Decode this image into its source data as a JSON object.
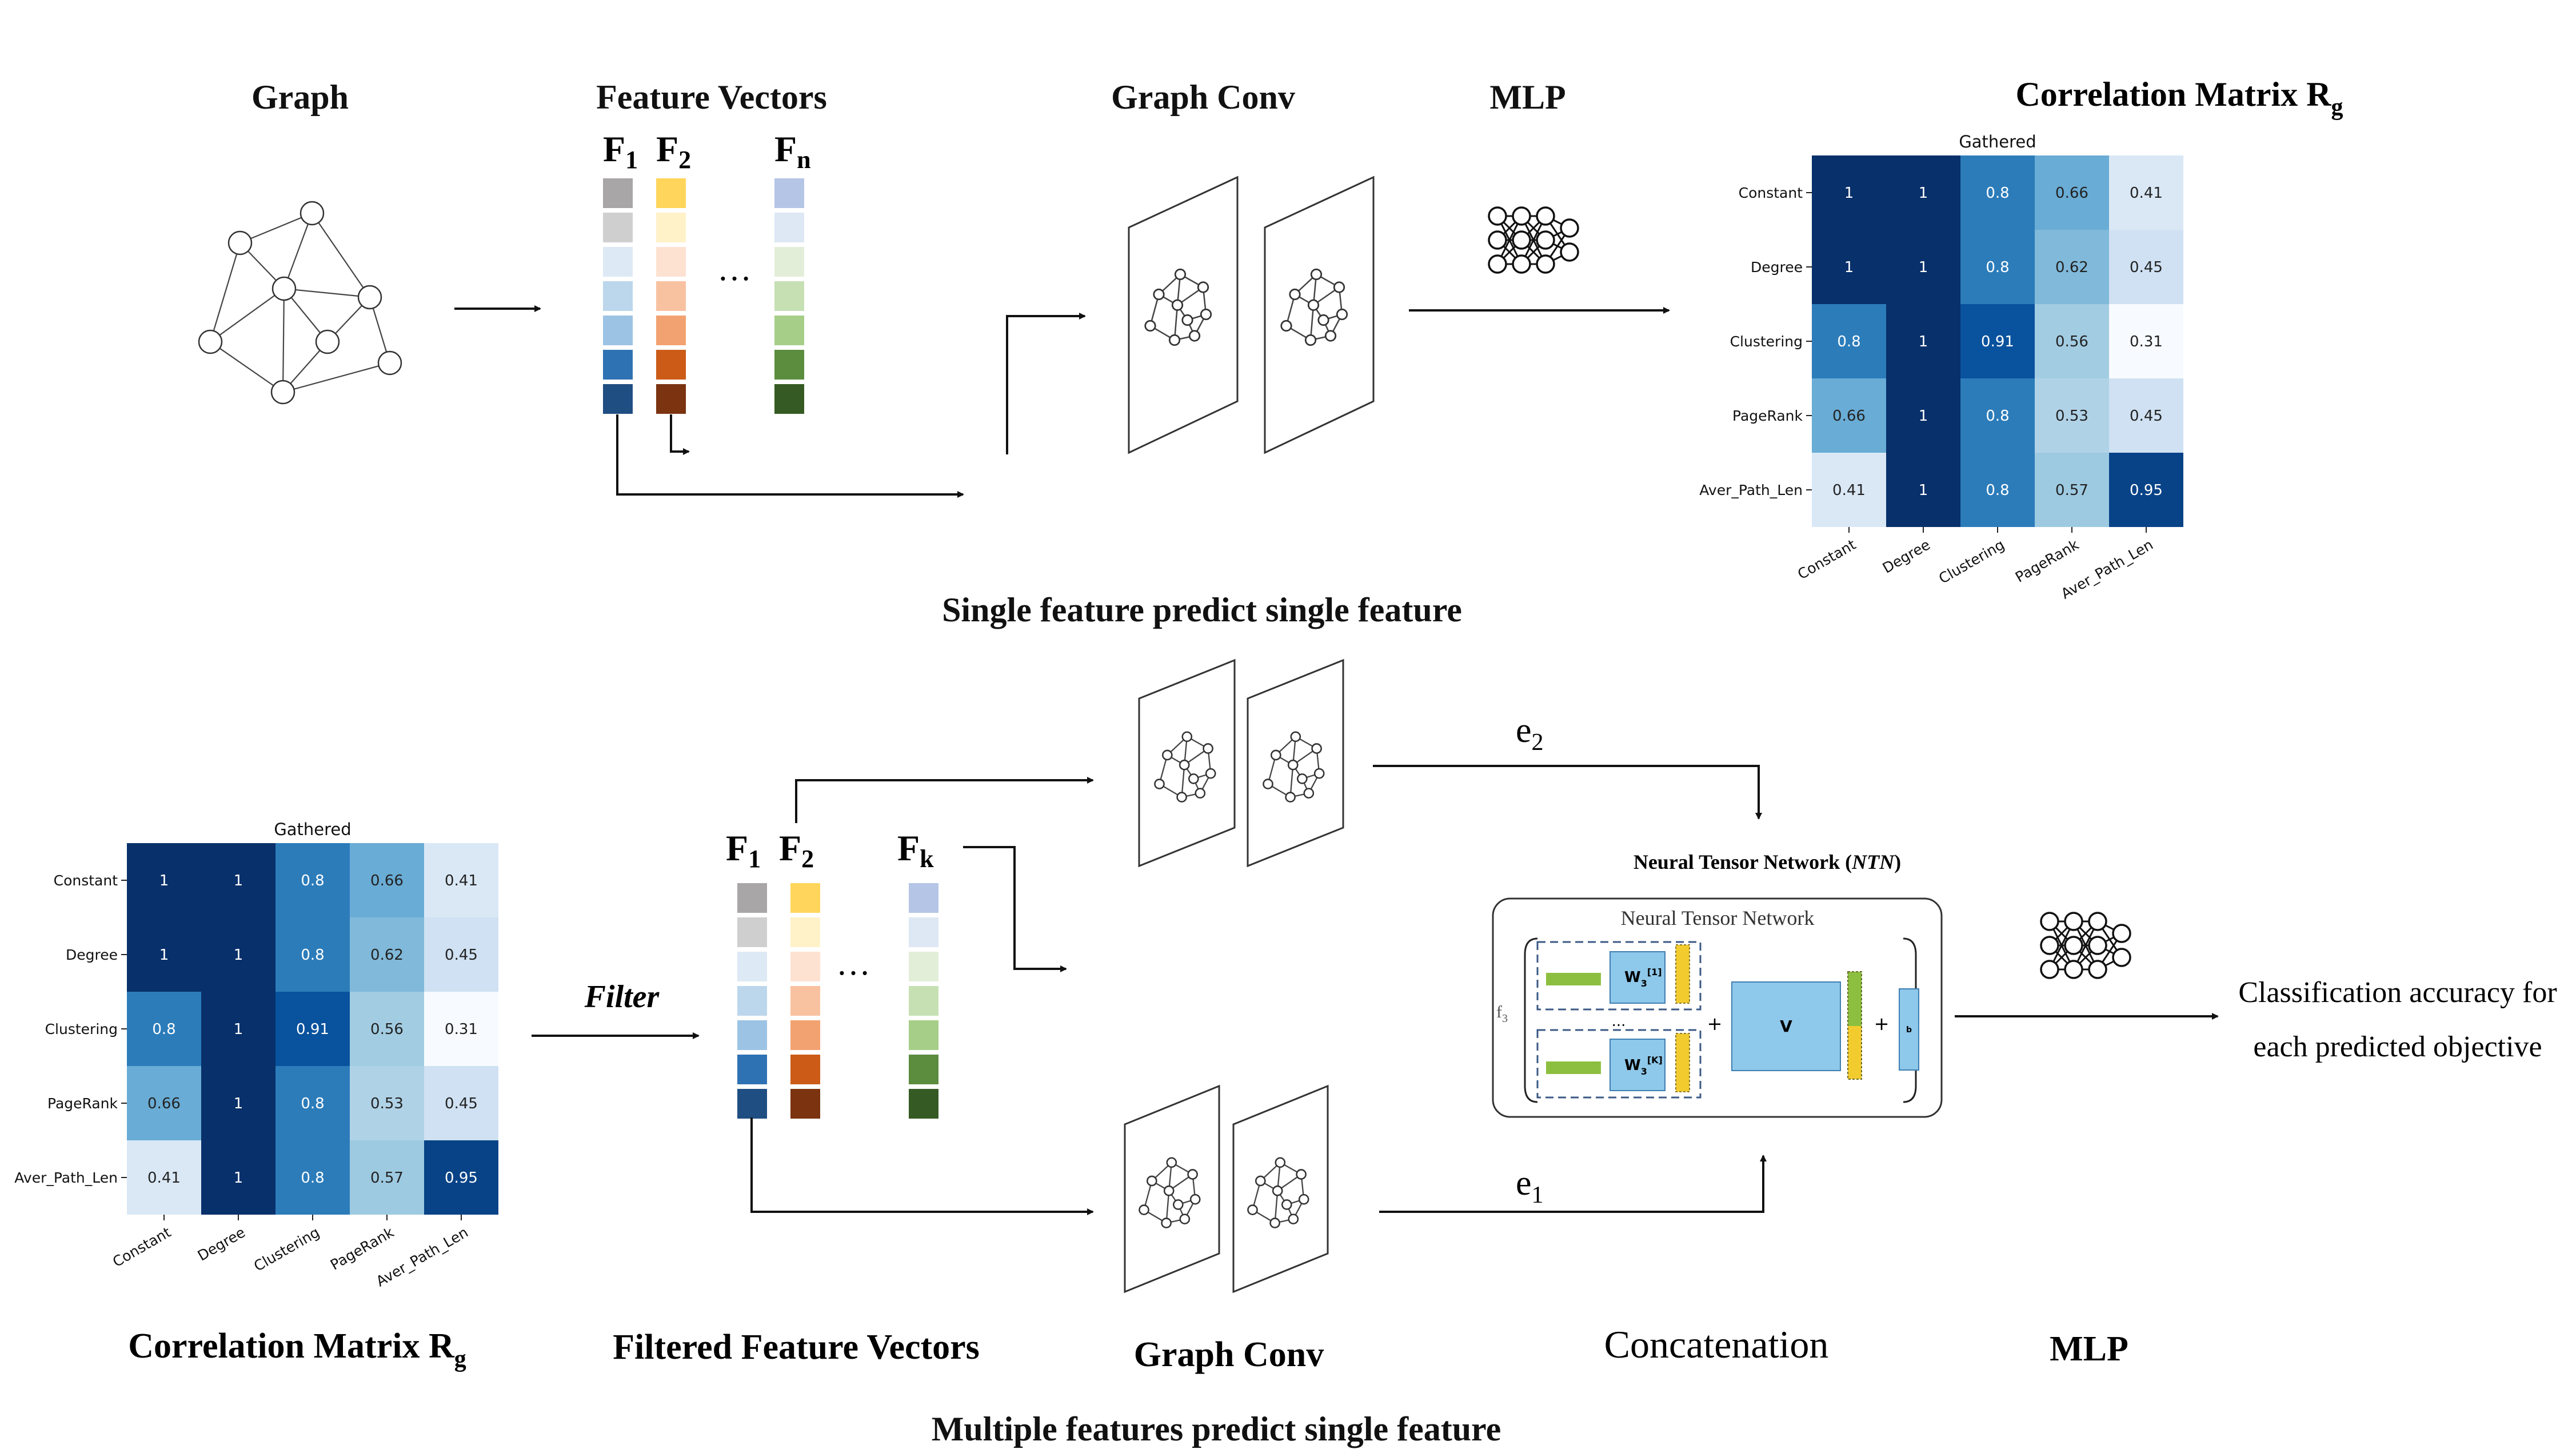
{
  "top": {
    "graph_title": "Graph",
    "features_title": "Feature Vectors",
    "f1_label": "F",
    "f1_sub": "1",
    "f2_label": "F",
    "f2_sub": "2",
    "fn_label": "F",
    "fn_sub": "n",
    "ellipsis": "…",
    "graphconv_title": "Graph Conv",
    "mlp_title": "MLP",
    "corr_title": "Correlation Matrix  R",
    "corr_sub": "g",
    "caption": "Single feature predict single feature"
  },
  "bottom": {
    "corr_title": "Correlation Matrix  R",
    "corr_sub": "g",
    "filter_label": "Filter",
    "f1_label": "F",
    "f1_sub": "1",
    "f2_label": "F",
    "f2_sub": "2",
    "fk_label": "F",
    "fk_sub": "k",
    "ellipsis": "…",
    "filtered_title": "Filtered Feature Vectors",
    "graphconv_title": "Graph Conv",
    "e2_label": "e",
    "e2_sub": "2",
    "e1_label": "e",
    "e1_sub": "1",
    "ntn_title_prefix": "Neural Tensor Network (",
    "ntn_title_italic": "NTN",
    "ntn_title_suffix": ")",
    "ntn_inner_title": "Neural Tensor Network",
    "ntn_f3": "f",
    "ntn_f3_sub": "3",
    "ntn_w1": "W",
    "ntn_w1_sub": "3",
    "ntn_w1_sup": "[1]",
    "ntn_wk": "W",
    "ntn_wk_sub": "3",
    "ntn_wk_sup": "[K]",
    "ntn_v": "V",
    "ntn_b": "b",
    "ntn_dots": "...",
    "ntn_plus": "+",
    "concat_title": "Concatenation",
    "mlp_title": "MLP",
    "result_line1": "Classification accuracy for",
    "result_line2": "each predicted objective",
    "caption": "Multiple features predict single feature"
  },
  "chart_data": {
    "type": "heatmap",
    "title": "Gathered",
    "rows": [
      "Constant",
      "Degree",
      "Clustering",
      "PageRank",
      "Aver_Path_Len"
    ],
    "cols": [
      "Constant",
      "Degree",
      "Clustering",
      "PageRank",
      "Aver_Path_Len"
    ],
    "values": [
      [
        1,
        1,
        0.8,
        0.66,
        0.41
      ],
      [
        1,
        1,
        0.8,
        0.62,
        0.45
      ],
      [
        0.8,
        1,
        0.91,
        0.56,
        0.31
      ],
      [
        0.66,
        1,
        0.8,
        0.53,
        0.45
      ],
      [
        0.41,
        1,
        0.8,
        0.57,
        0.95
      ]
    ],
    "colormap": "Blues",
    "vmin": 0.31,
    "vmax": 1
  },
  "colors": {
    "f1_column": [
      "#a8a6a6",
      "#cfcfcf",
      "#dde9f5",
      "#bcd6ec",
      "#9cc3e4",
      "#2f72b4",
      "#1f4e82"
    ],
    "f2_column": [
      "#ffd65b",
      "#fff2c8",
      "#fde2d2",
      "#f8c2a1",
      "#f2a271",
      "#cb5b17",
      "#7b3310"
    ],
    "fn_column": [
      "#b5c5e6",
      "#dde8f4",
      "#e3eed9",
      "#c6e0b4",
      "#a6ce88",
      "#5c8c3e",
      "#365a23"
    ]
  },
  "icons": [
    "graph-icon",
    "neural-network-icon",
    "graph-conv-plane-icon",
    "arrow-icon"
  ]
}
